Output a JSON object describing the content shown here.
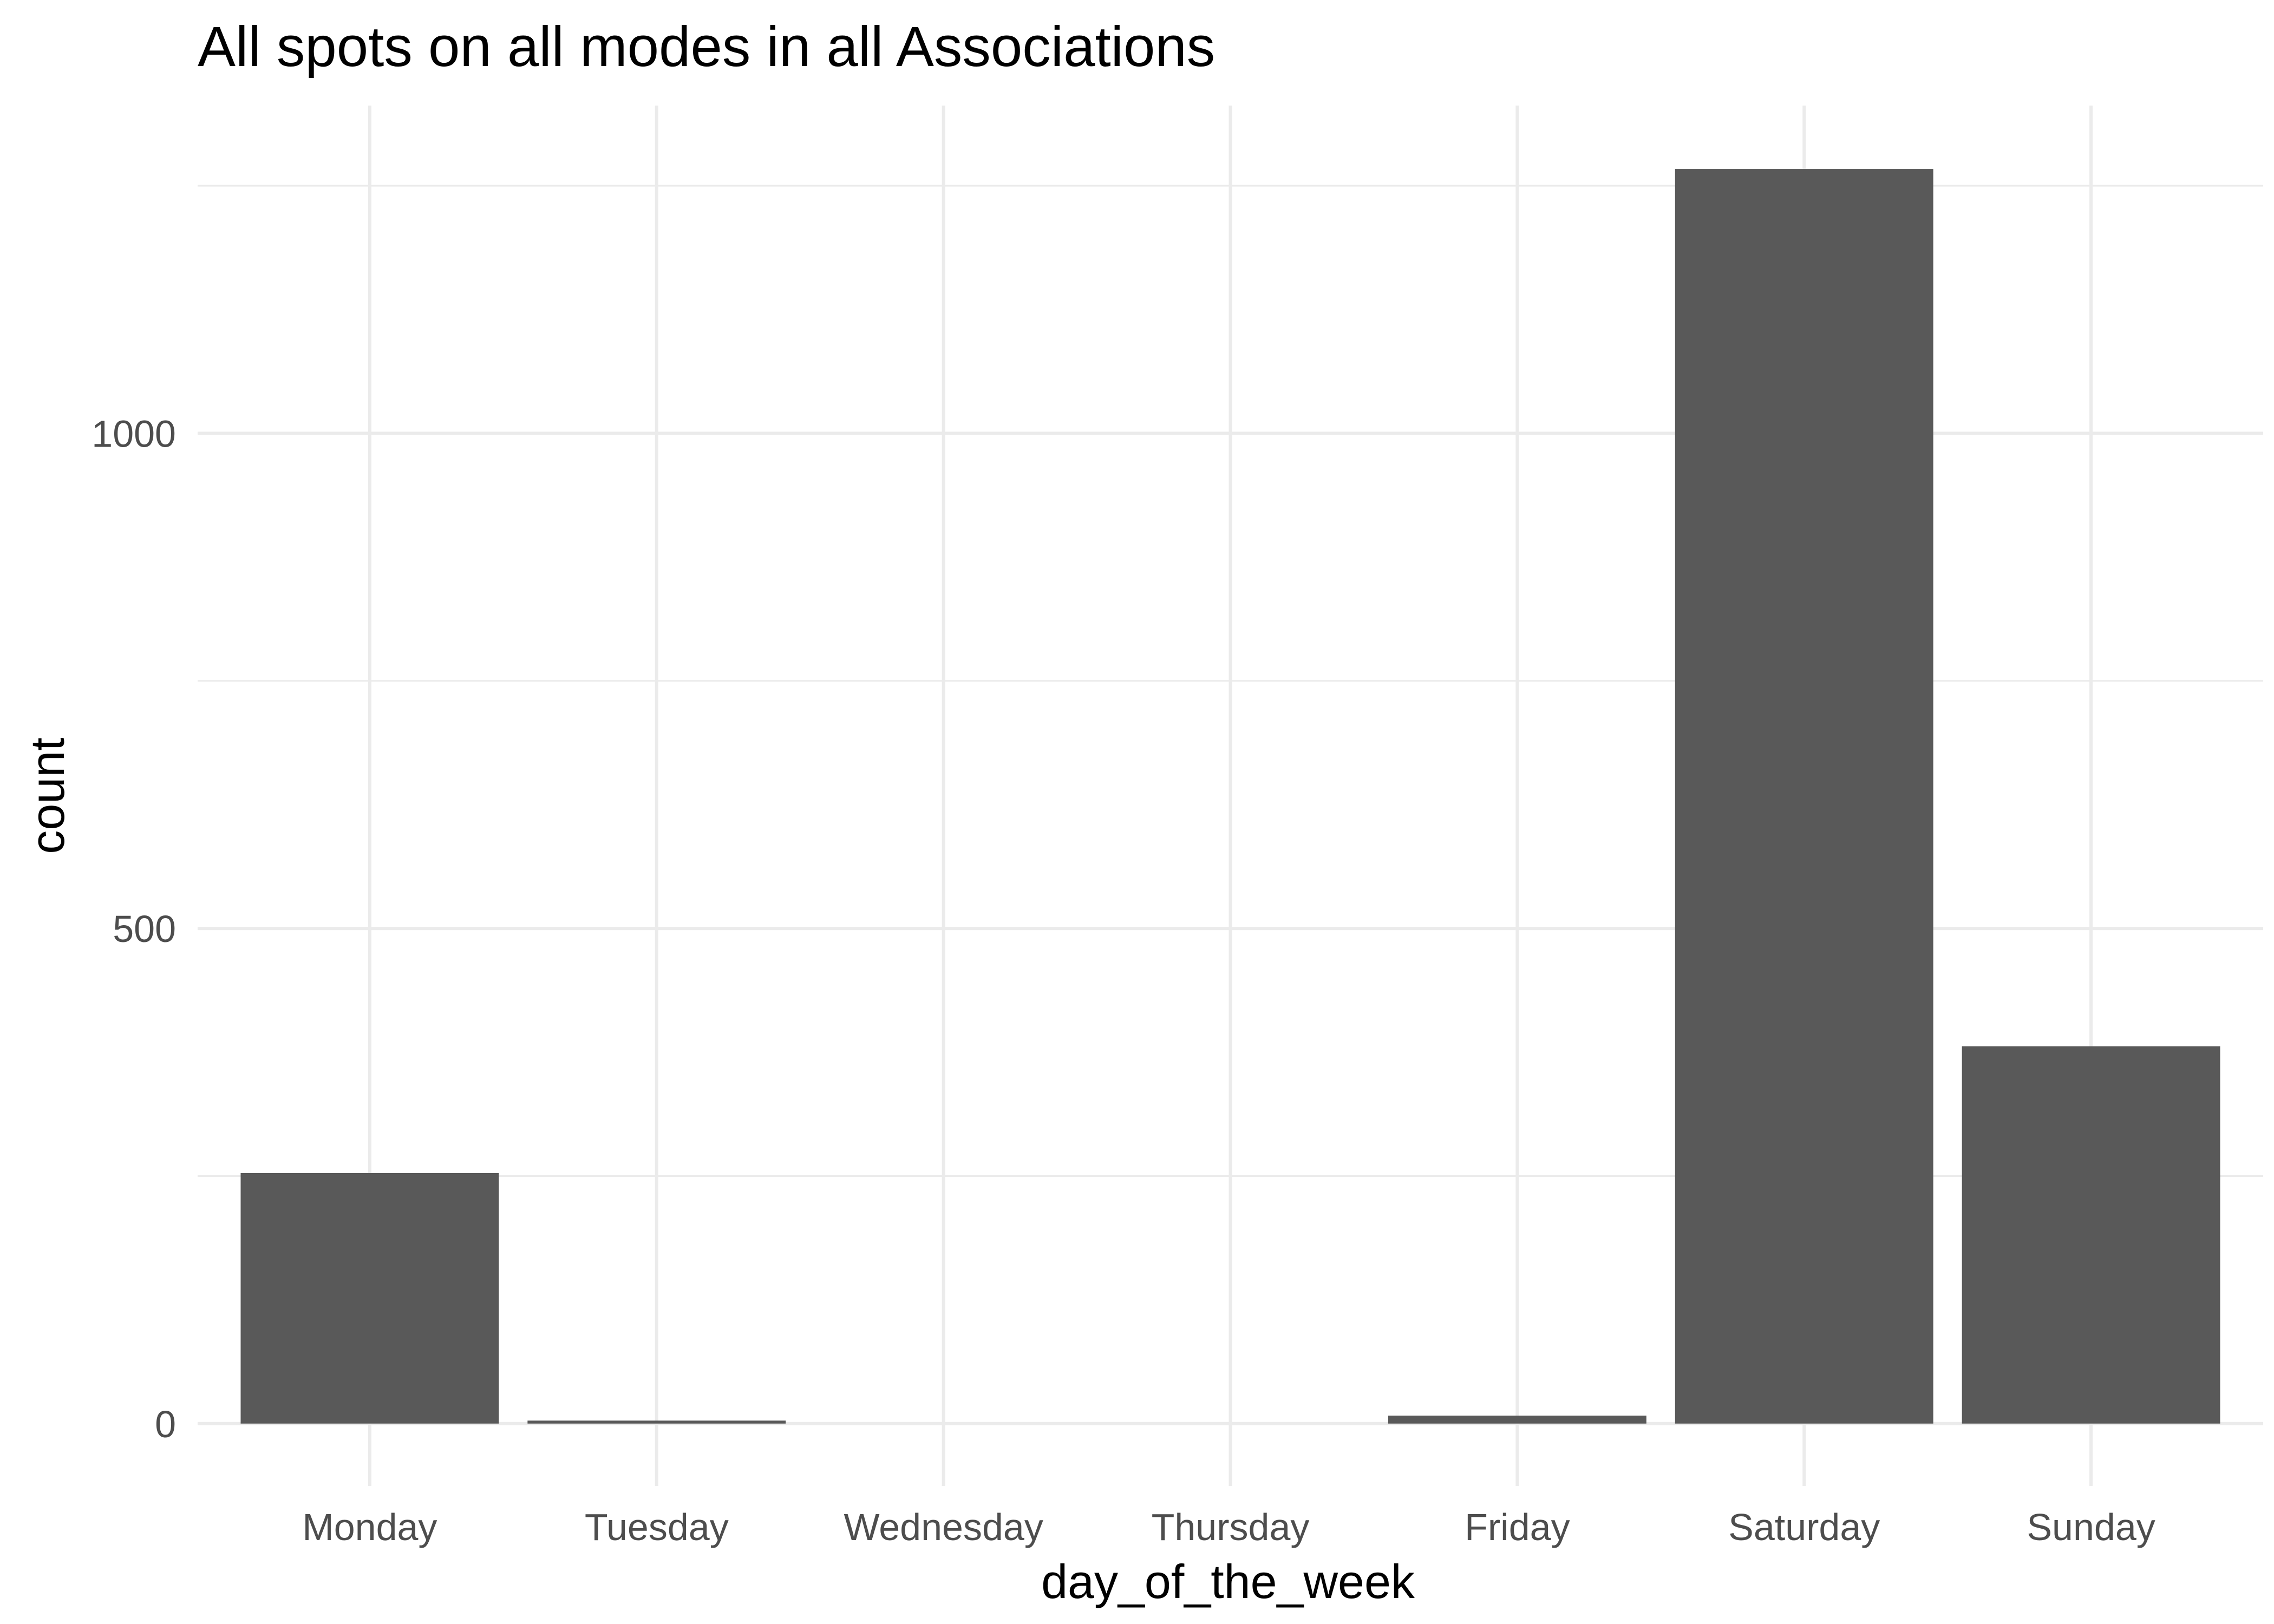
{
  "chart_data": {
    "type": "bar",
    "title": "All spots on all modes in all Associations",
    "xlabel": "day_of_the_week",
    "ylabel": "count",
    "categories": [
      "Monday",
      "Tuesday",
      "Wednesday",
      "Thursday",
      "Friday",
      "Saturday",
      "Sunday"
    ],
    "values": [
      253,
      3,
      0,
      0,
      8,
      1267,
      381
    ],
    "ylim": [
      -63,
      1331
    ],
    "y_ticks": [
      0,
      500,
      1000
    ],
    "y_tick_labels": [
      "0",
      "500",
      "1000"
    ],
    "y_minor_ticks": [
      250,
      750,
      1250
    ],
    "grid": true,
    "legend": "none",
    "bar_color": "#595959",
    "grid_color": "#ebebeb",
    "background_color": "#ffffff"
  }
}
